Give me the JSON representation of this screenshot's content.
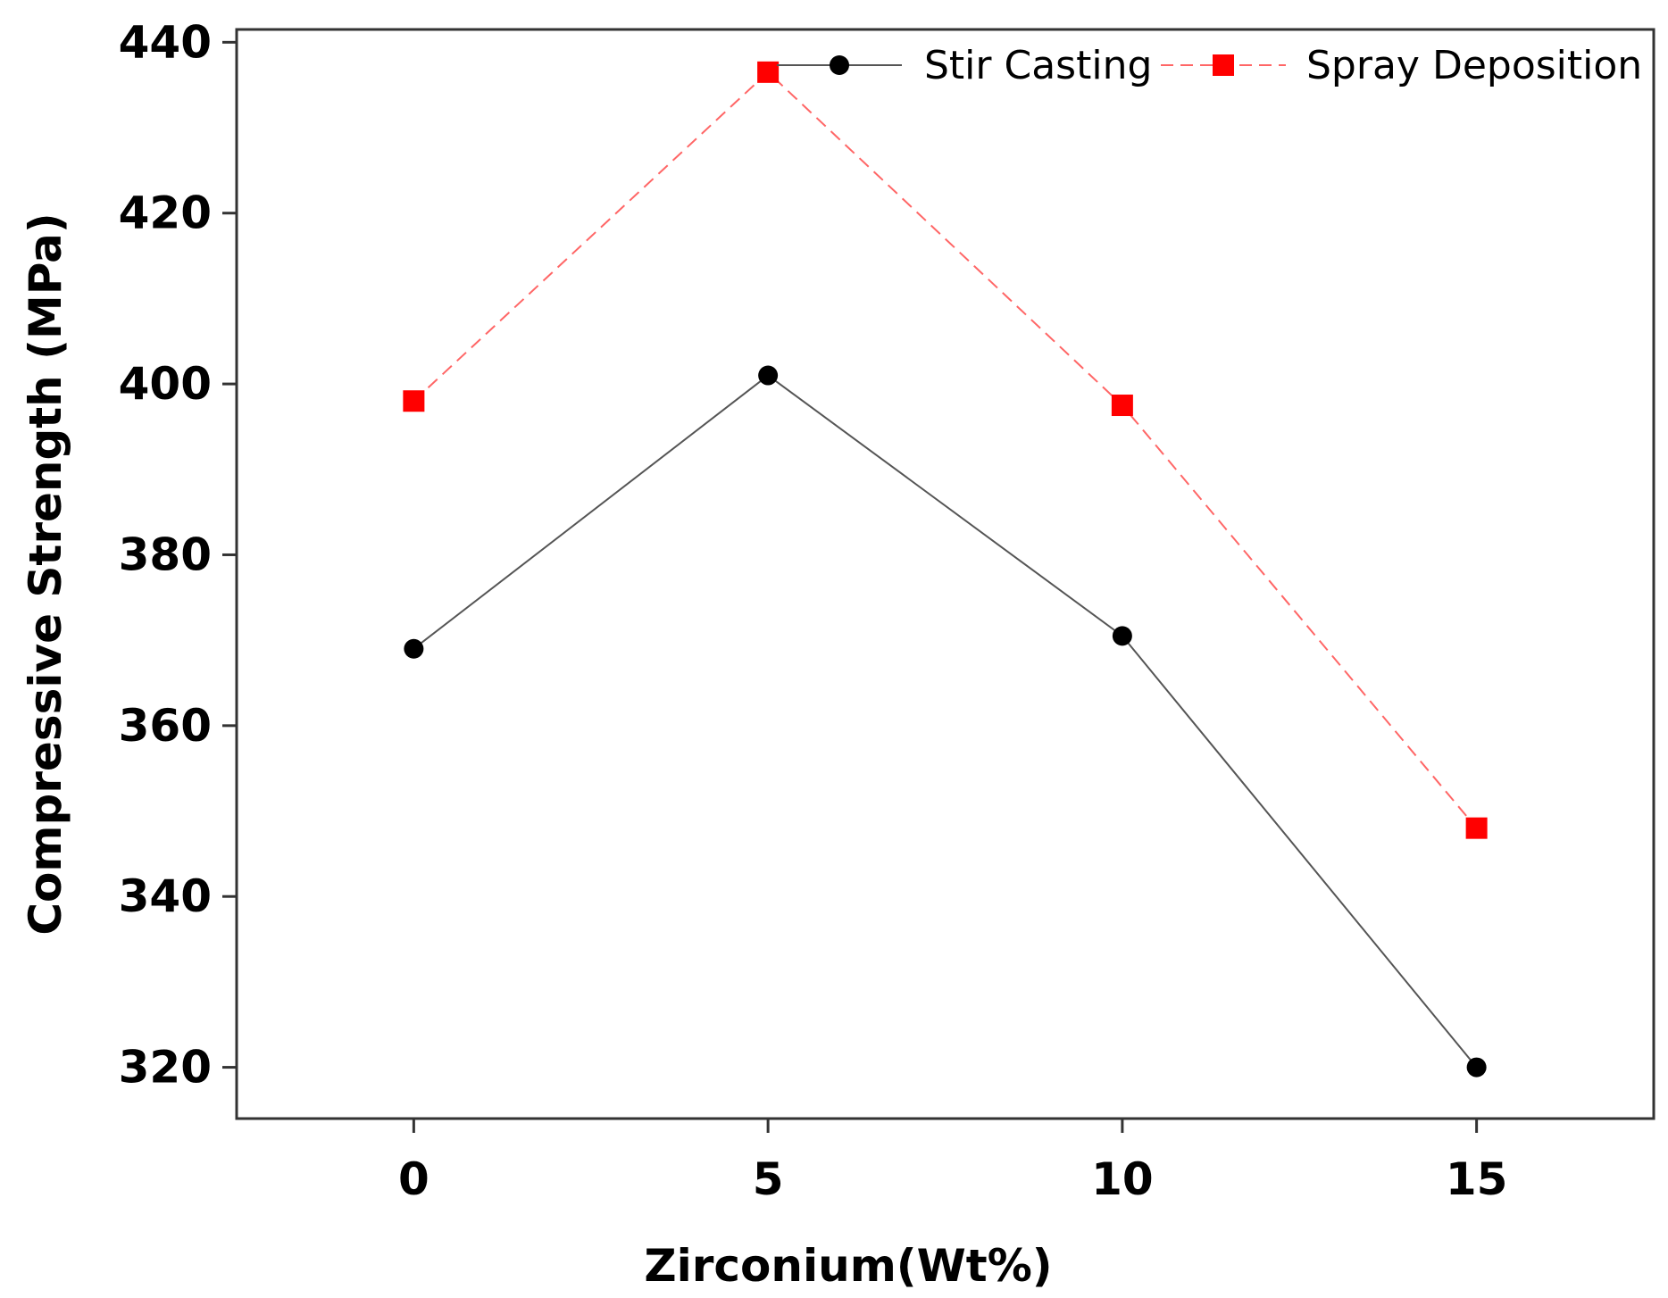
{
  "chart_data": {
    "type": "line",
    "title": "",
    "xlabel": "Zirconium(Wt%)",
    "ylabel": "Compressive Strength (MPa)",
    "x": [
      0,
      5,
      10,
      15
    ],
    "x_ticks": [
      "0",
      "5",
      "10",
      "15"
    ],
    "xlim": [
      -2.5,
      17.5
    ],
    "y_ticks": [
      "320",
      "340",
      "360",
      "380",
      "400",
      "420",
      "440"
    ],
    "ylim": [
      314,
      441.5
    ],
    "grid": false,
    "legend_position": "top-right",
    "series": [
      {
        "name": "Stir Casting",
        "values": [
          369,
          401,
          370.5,
          320
        ],
        "color": "#000000",
        "line_color": "#555555",
        "marker": "circle",
        "dash": "solid"
      },
      {
        "name": "Spray Deposition",
        "values": [
          398,
          436.5,
          397.5,
          348
        ],
        "color": "#ff0000",
        "line_color": "#ff6666",
        "marker": "square",
        "dash": "dashed"
      }
    ]
  }
}
